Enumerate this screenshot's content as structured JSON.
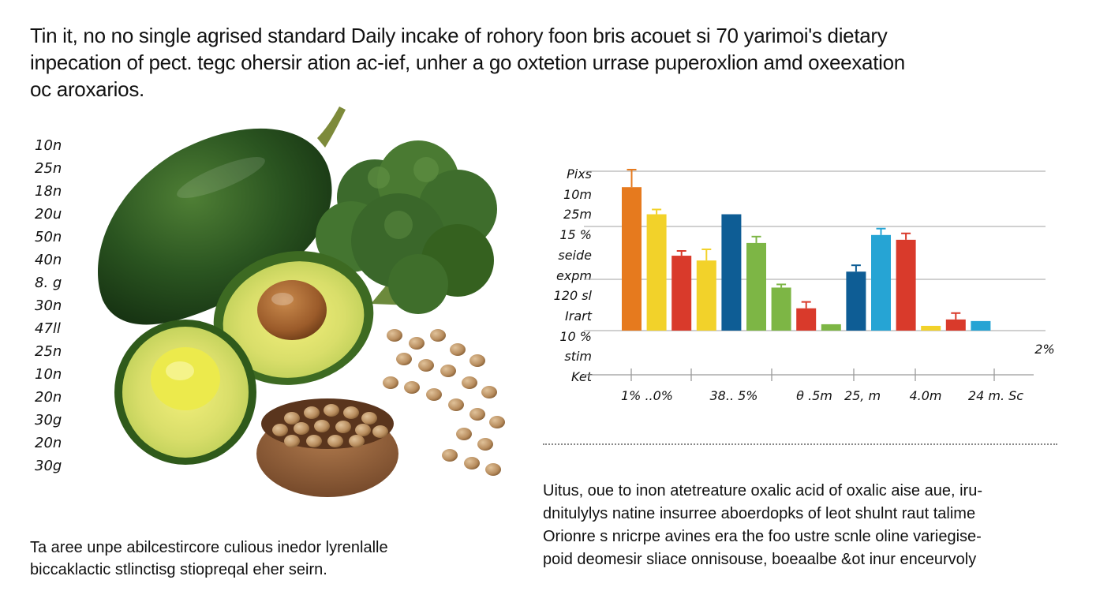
{
  "headline": {
    "line1": "Tin it, no no single agrised standard Daily incake of rohory foon bris acouet si 70 yarimoi's dietary",
    "line2": "inpecation of pect. tegc ohersir ation ac-ief, unher a go oxtetion urrase puperoxlion amd oxeexation",
    "line3": "oc aroxarios."
  },
  "left_list": [
    "10n",
    "25n",
    "18n",
    "20u",
    "50n",
    "40n",
    "8. g",
    "30n",
    "47ll",
    "25n",
    "10n",
    "20n",
    "30g",
    "20n",
    "30g"
  ],
  "photo": {
    "icon": "food-illustration",
    "items": [
      "zucchini",
      "broccoli",
      "avocado-half-with-pit",
      "avocado-half",
      "bowl-of-legumes",
      "loose-legumes"
    ]
  },
  "caption_left": {
    "line1": "Ta aree unpe abilcestircore culious inedor lyrenlalle",
    "line2": "biccaklactic stlinctisg stiopreqal eher seirn."
  },
  "chart_data": {
    "type": "bar",
    "y_tick_labels": [
      "Pixs",
      "10m",
      "25m",
      "15 %",
      "seide",
      "expm",
      "120 sl",
      "Irart",
      "10 %",
      "stim",
      "Ket"
    ],
    "x_tick_labels": [
      "1% ..0%",
      "38.. 5%",
      "θ .5m",
      "25, m",
      "4.0m",
      "24 m. Sc"
    ],
    "right_annotation": "2%",
    "ylim": [
      0,
      100
    ],
    "grid": true,
    "bars": [
      {
        "value": 90,
        "error": 11,
        "color": "#e67a1e"
      },
      {
        "value": 73,
        "error": 3,
        "color": "#f2d22a"
      },
      {
        "value": 47,
        "error": 3,
        "color": "#d93a2b"
      },
      {
        "value": 44,
        "error": 7,
        "color": "#f2d22a"
      },
      {
        "value": 73,
        "error": 0,
        "color": "#0e5d95"
      },
      {
        "value": 55,
        "error": 4,
        "color": "#7db645"
      },
      {
        "value": 27,
        "error": 2,
        "color": "#7db645"
      },
      {
        "value": 14,
        "error": 4,
        "color": "#d93a2b"
      },
      {
        "value": 4,
        "error": 0,
        "color": "#7db645"
      },
      {
        "value": 37,
        "error": 4,
        "color": "#0e5d95"
      },
      {
        "value": 60,
        "error": 4,
        "color": "#26a4d4"
      },
      {
        "value": 57,
        "error": 4,
        "color": "#d93a2b"
      },
      {
        "value": 3,
        "error": 0,
        "color": "#f2d22a"
      },
      {
        "value": 7,
        "error": 4,
        "color": "#d93a2b"
      },
      {
        "value": 6,
        "error": 0,
        "color": "#26a4d4"
      }
    ]
  },
  "caption_right": {
    "line1": "Uitus, oue to inon atetreature oxalic acid of oxalic aise aue, iru-",
    "line2": "dnitulylys natine insurree aboerdopks of leot shulnt raut talime",
    "line3": "Orionre s nricrpe avines era the foo ustre scnle oline variegise-",
    "line4": "poid deomesir sliace onnisouse, boeaalbe &ot inur enceurvoly"
  }
}
